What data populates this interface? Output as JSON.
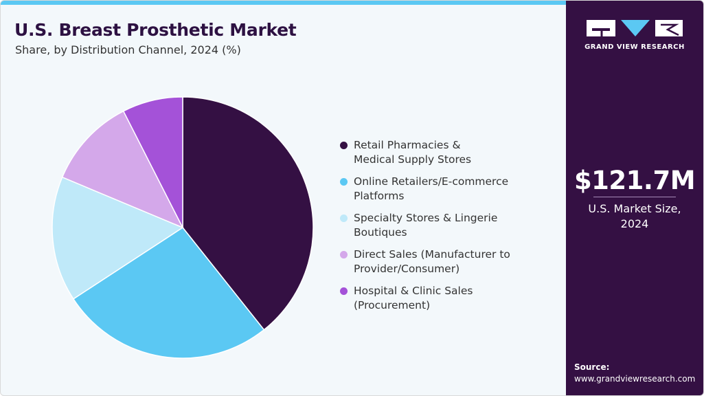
{
  "header": {
    "title": "U.S. Breast Prosthetic Market",
    "subtitle": "Share, by Distribution Channel, 2024 (%)"
  },
  "sidebar": {
    "brand": "GRAND VIEW RESEARCH",
    "market_value": "$121.7M",
    "market_label_line1": "U.S. Market Size,",
    "market_label_line2": "2024",
    "source_label": "Source:",
    "source_url": "www.grandviewresearch.com"
  },
  "colors": {
    "accent_bar": "#5bc8f3",
    "sidebar_bg": "#341043",
    "title": "#2d1142"
  },
  "chart_data": {
    "type": "pie",
    "title": "U.S. Breast Prosthetic Market",
    "subtitle": "Share, by Distribution Channel, 2024 (%)",
    "start_angle_deg": 0,
    "direction": "clockwise",
    "legend_position": "right",
    "series": [
      {
        "name_line1": "Retail Pharmacies &",
        "name_line2": "Medical Supply Stores",
        "value": 39.3,
        "color": "#341043"
      },
      {
        "name_line1": "Online Retailers/E-commerce",
        "name_line2": "Platforms",
        "value": 26.5,
        "color": "#5bc8f3"
      },
      {
        "name_line1": "Specialty Stores & Lingerie",
        "name_line2": "Boutiques",
        "value": 15.5,
        "color": "#bfe9f9"
      },
      {
        "name_line1": "Direct Sales (Manufacturer to",
        "name_line2": "Provider/Consumer)",
        "value": 11.2,
        "color": "#d4a8ea"
      },
      {
        "name_line1": "Hospital & Clinic Sales",
        "name_line2": "(Procurement)",
        "value": 7.5,
        "color": "#a452d8"
      }
    ]
  }
}
